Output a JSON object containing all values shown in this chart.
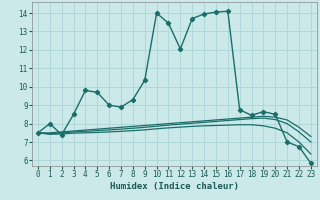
{
  "title": "",
  "xlabel": "Humidex (Indice chaleur)",
  "ylabel": "",
  "background_color": "#cce9e9",
  "line_color": "#1a6e6a",
  "grid_color": "#b0d8d8",
  "xlim": [
    -0.5,
    23.5
  ],
  "ylim": [
    5.7,
    14.6
  ],
  "xticks": [
    0,
    1,
    2,
    3,
    4,
    5,
    6,
    7,
    8,
    9,
    10,
    11,
    12,
    13,
    14,
    15,
    16,
    17,
    18,
    19,
    20,
    21,
    22,
    23
  ],
  "yticks": [
    6,
    7,
    8,
    9,
    10,
    11,
    12,
    13,
    14
  ],
  "series1_x": [
    0,
    1,
    2,
    3,
    4,
    5,
    6,
    7,
    8,
    9,
    10,
    11,
    12,
    13,
    14,
    15,
    16,
    17,
    18,
    19,
    20,
    21,
    22,
    23
  ],
  "series1_y": [
    7.5,
    8.0,
    7.4,
    8.5,
    9.8,
    9.7,
    9.0,
    8.9,
    9.3,
    10.35,
    14.0,
    13.45,
    12.05,
    13.7,
    13.95,
    14.05,
    14.1,
    8.75,
    8.45,
    8.65,
    8.5,
    7.0,
    6.75,
    5.85
  ],
  "series2_x": [
    0,
    1,
    2,
    3,
    4,
    5,
    6,
    7,
    8,
    9,
    10,
    11,
    12,
    13,
    14,
    15,
    16,
    17,
    18,
    19,
    20,
    21,
    22,
    23
  ],
  "series2_y": [
    7.5,
    7.5,
    7.55,
    7.6,
    7.65,
    7.7,
    7.75,
    7.8,
    7.85,
    7.9,
    7.95,
    8.0,
    8.05,
    8.1,
    8.15,
    8.2,
    8.25,
    8.3,
    8.35,
    8.4,
    8.35,
    8.2,
    7.8,
    7.3
  ],
  "series3_x": [
    0,
    1,
    2,
    3,
    4,
    5,
    6,
    7,
    8,
    9,
    10,
    11,
    12,
    13,
    14,
    15,
    16,
    17,
    18,
    19,
    20,
    21,
    22,
    23
  ],
  "series3_y": [
    7.5,
    7.45,
    7.5,
    7.55,
    7.58,
    7.62,
    7.66,
    7.7,
    7.75,
    7.8,
    7.86,
    7.92,
    7.97,
    8.02,
    8.07,
    8.12,
    8.17,
    8.22,
    8.27,
    8.3,
    8.22,
    8.0,
    7.55,
    7.0
  ],
  "series4_x": [
    0,
    1,
    2,
    3,
    4,
    5,
    6,
    7,
    8,
    9,
    10,
    11,
    12,
    13,
    14,
    15,
    16,
    17,
    18,
    19,
    20,
    21,
    22,
    23
  ],
  "series4_y": [
    7.5,
    7.42,
    7.44,
    7.48,
    7.5,
    7.52,
    7.55,
    7.58,
    7.62,
    7.66,
    7.72,
    7.77,
    7.81,
    7.85,
    7.88,
    7.9,
    7.92,
    7.94,
    7.94,
    7.88,
    7.75,
    7.5,
    7.0,
    6.35
  ]
}
